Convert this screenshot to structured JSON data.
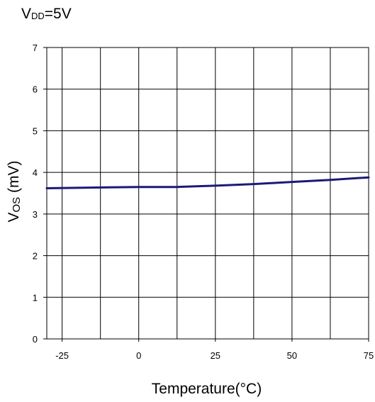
{
  "condition": {
    "main": "V",
    "sub": "DD",
    "rest": "=5V"
  },
  "chart_data": {
    "type": "line",
    "xlabel": "Temperature(°C)",
    "ylabel": {
      "main": "V",
      "sub": "OS",
      "rest": " (mV)"
    },
    "xlim": [
      -30,
      75
    ],
    "ylim": [
      0,
      7
    ],
    "x_ticks": [
      -25,
      0,
      25,
      50,
      75
    ],
    "x_tick_labels": [
      "-25",
      "0",
      "25",
      "50",
      "75"
    ],
    "y_ticks": [
      0,
      1,
      2,
      3,
      4,
      5,
      6,
      7
    ],
    "y_tick_labels": [
      "0",
      "1",
      "2",
      "3",
      "4",
      "5",
      "6",
      "7"
    ],
    "grid": true,
    "series": [
      {
        "color": "#1a1a78",
        "x": [
          -30,
          -20,
          -10,
          0,
          12.5,
          25,
          37.5,
          50,
          62.5,
          75
        ],
        "y": [
          3.62,
          3.63,
          3.64,
          3.65,
          3.65,
          3.68,
          3.72,
          3.77,
          3.82,
          3.88
        ]
      }
    ]
  }
}
